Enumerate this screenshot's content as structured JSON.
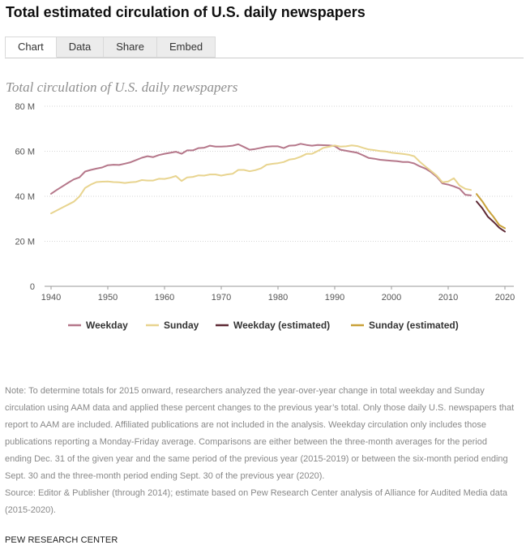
{
  "header": {
    "title": "Total estimated circulation of U.S. daily newspapers"
  },
  "tabs": [
    {
      "label": "Chart",
      "active": true
    },
    {
      "label": "Data",
      "active": false
    },
    {
      "label": "Share",
      "active": false
    },
    {
      "label": "Embed",
      "active": false
    }
  ],
  "chart_data": {
    "type": "line",
    "title": "Total circulation of U.S. daily newspapers",
    "xlabel": "",
    "ylabel": "",
    "xlim": [
      1940,
      2020
    ],
    "ylim": [
      0,
      80000000
    ],
    "x_ticks": [
      1940,
      1950,
      1960,
      1970,
      1980,
      1990,
      2000,
      2010,
      2020
    ],
    "y_ticks": [
      {
        "value": 0,
        "label": "0"
      },
      {
        "value": 20000000,
        "label": "20 M"
      },
      {
        "value": 40000000,
        "label": "40 M"
      },
      {
        "value": 60000000,
        "label": "60 M"
      },
      {
        "value": 80000000,
        "label": "80 M"
      }
    ],
    "grid": "horizontal dotted",
    "legend": "bottom",
    "series": [
      {
        "name": "Weekday",
        "color": "#b5778a",
        "points": [
          [
            1940,
            41100000
          ],
          [
            1941,
            42800000
          ],
          [
            1942,
            44400000
          ],
          [
            1943,
            46000000
          ],
          [
            1944,
            47500000
          ],
          [
            1945,
            48400000
          ],
          [
            1946,
            51000000
          ],
          [
            1947,
            51700000
          ],
          [
            1948,
            52300000
          ],
          [
            1949,
            52800000
          ],
          [
            1950,
            53800000
          ],
          [
            1951,
            54000000
          ],
          [
            1952,
            53900000
          ],
          [
            1953,
            54500000
          ],
          [
            1954,
            55100000
          ],
          [
            1955,
            56100000
          ],
          [
            1956,
            57100000
          ],
          [
            1957,
            57800000
          ],
          [
            1958,
            57400000
          ],
          [
            1959,
            58300000
          ],
          [
            1960,
            58900000
          ],
          [
            1961,
            59300000
          ],
          [
            1962,
            59800000
          ],
          [
            1963,
            58900000
          ],
          [
            1964,
            60400000
          ],
          [
            1965,
            60400000
          ],
          [
            1966,
            61400000
          ],
          [
            1967,
            61600000
          ],
          [
            1968,
            62500000
          ],
          [
            1969,
            62100000
          ],
          [
            1970,
            62100000
          ],
          [
            1971,
            62200000
          ],
          [
            1972,
            62500000
          ],
          [
            1973,
            63100000
          ],
          [
            1974,
            61900000
          ],
          [
            1975,
            60700000
          ],
          [
            1976,
            61000000
          ],
          [
            1977,
            61500000
          ],
          [
            1978,
            62000000
          ],
          [
            1979,
            62200000
          ],
          [
            1980,
            62200000
          ],
          [
            1981,
            61400000
          ],
          [
            1982,
            62500000
          ],
          [
            1983,
            62600000
          ],
          [
            1984,
            63300000
          ],
          [
            1985,
            62800000
          ],
          [
            1986,
            62500000
          ],
          [
            1987,
            62800000
          ],
          [
            1988,
            62700000
          ],
          [
            1989,
            62600000
          ],
          [
            1990,
            62300000
          ],
          [
            1991,
            60700000
          ],
          [
            1992,
            60200000
          ],
          [
            1993,
            59800000
          ],
          [
            1994,
            59300000
          ],
          [
            1995,
            58200000
          ],
          [
            1996,
            57000000
          ],
          [
            1997,
            56700000
          ],
          [
            1998,
            56200000
          ],
          [
            1999,
            56000000
          ],
          [
            2000,
            55800000
          ],
          [
            2001,
            55600000
          ],
          [
            2002,
            55200000
          ],
          [
            2003,
            55200000
          ],
          [
            2004,
            54600000
          ],
          [
            2005,
            53300000
          ],
          [
            2006,
            52300000
          ],
          [
            2007,
            50700000
          ],
          [
            2008,
            48600000
          ],
          [
            2009,
            45700000
          ],
          [
            2010,
            45200000
          ],
          [
            2011,
            44400000
          ],
          [
            2012,
            43400000
          ],
          [
            2013,
            40700000
          ],
          [
            2014,
            40400000
          ]
        ]
      },
      {
        "name": "Sunday",
        "color": "#e8d48f",
        "points": [
          [
            1940,
            32400000
          ],
          [
            1941,
            33700000
          ],
          [
            1942,
            35000000
          ],
          [
            1943,
            36300000
          ],
          [
            1944,
            37600000
          ],
          [
            1945,
            39900000
          ],
          [
            1946,
            43700000
          ],
          [
            1947,
            45200000
          ],
          [
            1948,
            46300000
          ],
          [
            1949,
            46500000
          ],
          [
            1950,
            46600000
          ],
          [
            1951,
            46300000
          ],
          [
            1952,
            46200000
          ],
          [
            1953,
            45900000
          ],
          [
            1954,
            46200000
          ],
          [
            1955,
            46400000
          ],
          [
            1956,
            47200000
          ],
          [
            1957,
            47000000
          ],
          [
            1958,
            47000000
          ],
          [
            1959,
            47800000
          ],
          [
            1960,
            47700000
          ],
          [
            1961,
            48200000
          ],
          [
            1962,
            49000000
          ],
          [
            1963,
            46800000
          ],
          [
            1964,
            48400000
          ],
          [
            1965,
            48600000
          ],
          [
            1966,
            49300000
          ],
          [
            1967,
            49200000
          ],
          [
            1968,
            49700000
          ],
          [
            1969,
            49700000
          ],
          [
            1970,
            49200000
          ],
          [
            1971,
            49700000
          ],
          [
            1972,
            50000000
          ],
          [
            1973,
            51700000
          ],
          [
            1974,
            51700000
          ],
          [
            1975,
            51100000
          ],
          [
            1976,
            51600000
          ],
          [
            1977,
            52400000
          ],
          [
            1978,
            54000000
          ],
          [
            1979,
            54400000
          ],
          [
            1980,
            54700000
          ],
          [
            1981,
            55200000
          ],
          [
            1982,
            56300000
          ],
          [
            1983,
            56700000
          ],
          [
            1984,
            57600000
          ],
          [
            1985,
            58800000
          ],
          [
            1986,
            58900000
          ],
          [
            1987,
            60100000
          ],
          [
            1988,
            61500000
          ],
          [
            1989,
            62000000
          ],
          [
            1990,
            62600000
          ],
          [
            1991,
            62100000
          ],
          [
            1992,
            62200000
          ],
          [
            1993,
            62600000
          ],
          [
            1994,
            62300000
          ],
          [
            1995,
            61500000
          ],
          [
            1996,
            60800000
          ],
          [
            1997,
            60500000
          ],
          [
            1998,
            60100000
          ],
          [
            1999,
            59900000
          ],
          [
            2000,
            59400000
          ],
          [
            2001,
            59100000
          ],
          [
            2002,
            58800000
          ],
          [
            2003,
            58500000
          ],
          [
            2004,
            57800000
          ],
          [
            2005,
            55300000
          ],
          [
            2006,
            53200000
          ],
          [
            2007,
            51200000
          ],
          [
            2008,
            49100000
          ],
          [
            2009,
            46200000
          ],
          [
            2010,
            46600000
          ],
          [
            2011,
            48000000
          ],
          [
            2012,
            44800000
          ],
          [
            2013,
            43300000
          ],
          [
            2014,
            42800000
          ]
        ]
      },
      {
        "name": "Weekday (estimated)",
        "color": "#5e2a35",
        "points": [
          [
            2015,
            37700000
          ],
          [
            2016,
            34700000
          ],
          [
            2017,
            30900000
          ],
          [
            2018,
            28600000
          ],
          [
            2019,
            26000000
          ],
          [
            2020,
            24300000
          ]
        ]
      },
      {
        "name": "Sunday (estimated)",
        "color": "#c9a23a",
        "points": [
          [
            2015,
            41000000
          ],
          [
            2016,
            37800000
          ],
          [
            2017,
            34000000
          ],
          [
            2018,
            30800000
          ],
          [
            2019,
            27200000
          ],
          [
            2020,
            25800000
          ]
        ]
      }
    ]
  },
  "note": {
    "text": "Note: To determine totals for 2015 onward, researchers analyzed the year-over-year change in total weekday and Sunday circulation using AAM data and applied these percent changes to the previous year’s total. Only those daily U.S. newspapers that report to AAM are included. Affiliated publications are not included in the analysis. Weekday circulation only includes those publications reporting a Monday-Friday average. Comparisons are either between the three-month averages for the period ending Dec. 31 of the given year and the same period of the previous year (2015-2019) or between the six-month period ending Sept. 30 and the three-month period ending Sept. 30 of the previous year (2020).",
    "source": "Source: Editor & Publisher (through 2014); estimate based on Pew Research Center analysis of Alliance for Audited Media data (2015-2020)."
  },
  "footer": {
    "text": "PEW RESEARCH CENTER"
  }
}
